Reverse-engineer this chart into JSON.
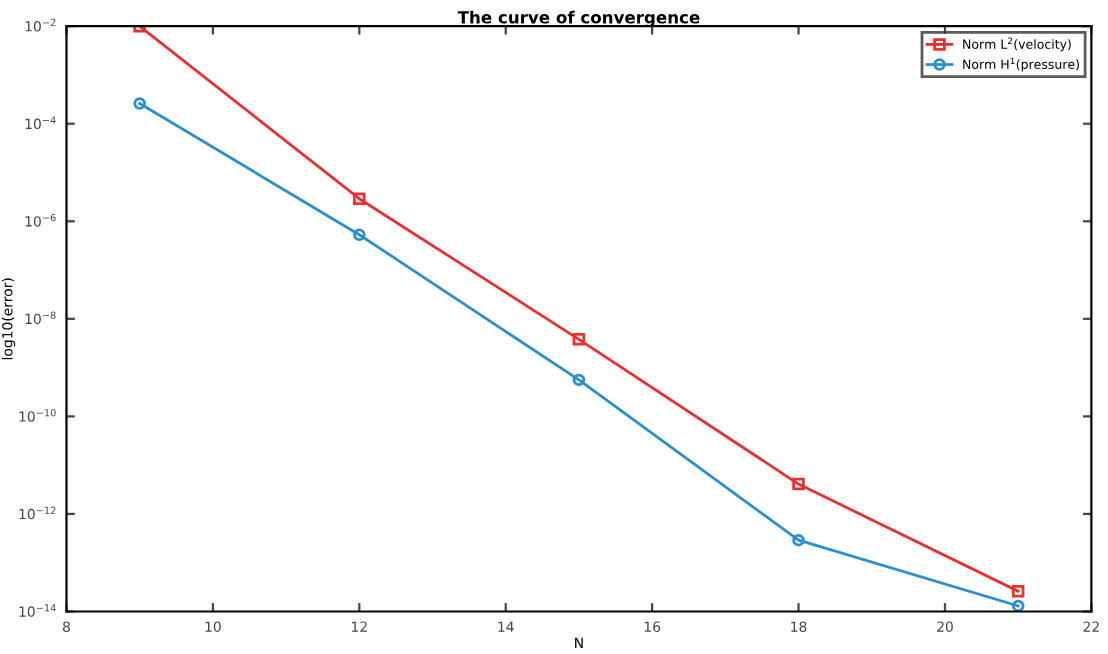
{
  "chart_data": {
    "type": "line",
    "title": "The curve of convergence",
    "xlabel": "N",
    "ylabel": "log10(error)",
    "x": [
      9,
      12,
      15,
      18,
      21
    ],
    "series": [
      {
        "name": "Norm L$^{2}$(velocity)",
        "color": "#e8312f",
        "marker": "square",
        "values": [
          0.01,
          2.9e-06,
          3.8e-09,
          4.1e-12,
          2.6e-14
        ]
      },
      {
        "name": "Norm H$^{1}$(pressure)",
        "color": "#2a8fd0",
        "marker": "circle",
        "values": [
          0.00026,
          5.3e-07,
          5.6e-10,
          2.9e-13,
          1.3e-14
        ]
      }
    ],
    "log": "y",
    "xlim": [
      8,
      22
    ],
    "xticks": [
      8,
      10,
      12,
      14,
      16,
      18,
      20,
      22
    ],
    "ylim": [
      1e-14,
      0.01
    ],
    "yticks": [
      {
        "value": 1e-14,
        "label": "10$^{−14}$"
      },
      {
        "value": 1e-12,
        "label": "10$^{−12}$"
      },
      {
        "value": 1e-10,
        "label": "10$^{−10}$"
      },
      {
        "value": 1e-08,
        "label": "10$^{−8}$"
      },
      {
        "value": 1e-06,
        "label": "10$^{−6}$"
      },
      {
        "value": 0.0001,
        "label": "10$^{−4}$"
      },
      {
        "value": 0.01,
        "label": "10$^{−2}$"
      }
    ],
    "grid": false,
    "legend": "top right",
    "line_style": "solid"
  }
}
